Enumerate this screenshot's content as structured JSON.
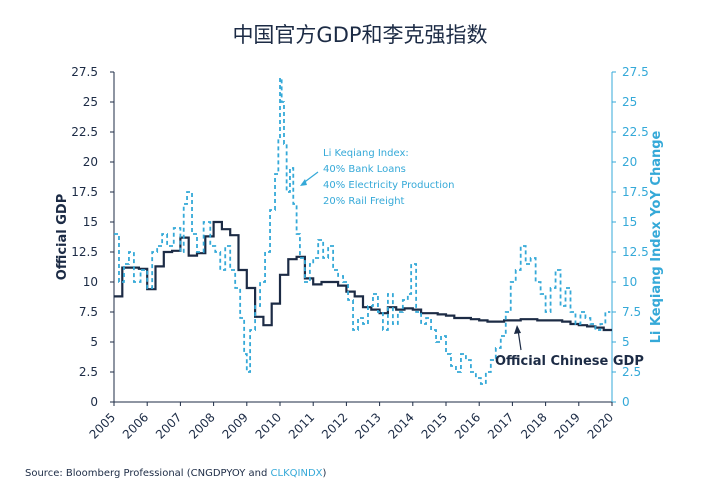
{
  "chart_data": {
    "type": "line",
    "title": "中国官方GDP和李克强指数",
    "ylabel_left": "Official GDP",
    "ylabel_right": "Li Keqiang Index YoY Change",
    "ylim_left": [
      0,
      27.5
    ],
    "ylim_right": [
      0,
      27.5
    ],
    "yticks": [
      0,
      2.5,
      5,
      7.5,
      10,
      12.5,
      15,
      17.5,
      20,
      22.5,
      25,
      27.5
    ],
    "ytick_labels": [
      "0",
      "2.5",
      "5",
      "7.5",
      "10",
      "12.5",
      "15",
      "17.5",
      "20",
      "22.5",
      "25",
      "27.5"
    ],
    "xlim": [
      2005,
      2020
    ],
    "xticks": [
      2005,
      2006,
      2007,
      2008,
      2009,
      2010,
      2011,
      2012,
      2013,
      2014,
      2015,
      2016,
      2017,
      2018,
      2019,
      2020
    ],
    "xtick_labels": [
      "2005",
      "2006",
      "2007",
      "2008",
      "2009",
      "2010",
      "2011",
      "2012",
      "2013",
      "2014",
      "2015",
      "2016",
      "2017",
      "2018",
      "2019",
      "2020"
    ],
    "colors": {
      "gdp": "#1c2b45",
      "lki": "#35a9d8"
    },
    "series": [
      {
        "name": "Official Chinese GDP",
        "axis": "left",
        "style": "step-solid",
        "x": [
          2005.0,
          2005.25,
          2005.75,
          2006.0,
          2006.25,
          2006.5,
          2006.75,
          2007.0,
          2007.25,
          2007.5,
          2007.75,
          2008.0,
          2008.25,
          2008.5,
          2008.75,
          2009.0,
          2009.25,
          2009.5,
          2009.75,
          2010.0,
          2010.25,
          2010.5,
          2010.75,
          2011.0,
          2011.25,
          2011.5,
          2011.75,
          2012.0,
          2012.25,
          2012.5,
          2012.75,
          2013.0,
          2013.25,
          2013.5,
          2013.75,
          2014.0,
          2014.25,
          2014.5,
          2014.75,
          2015.0,
          2015.25,
          2015.5,
          2015.75,
          2016.0,
          2016.25,
          2016.5,
          2016.75,
          2017.0,
          2017.25,
          2017.5,
          2017.75,
          2018.0,
          2018.25,
          2018.5,
          2018.75,
          2019.0,
          2019.25,
          2019.5,
          2019.75,
          2020.0
        ],
        "y": [
          8.8,
          11.2,
          11.1,
          9.4,
          11.3,
          12.5,
          12.6,
          13.7,
          12.2,
          12.4,
          13.8,
          15.0,
          14.4,
          13.9,
          11.0,
          9.5,
          7.1,
          6.4,
          8.2,
          10.6,
          11.9,
          12.1,
          10.3,
          9.8,
          10.0,
          10.0,
          9.7,
          9.2,
          8.8,
          7.9,
          7.7,
          7.4,
          7.9,
          7.7,
          7.8,
          7.7,
          7.4,
          7.4,
          7.3,
          7.2,
          7.0,
          7.0,
          6.9,
          6.8,
          6.7,
          6.7,
          6.8,
          6.8,
          6.9,
          6.9,
          6.8,
          6.8,
          6.8,
          6.7,
          6.5,
          6.4,
          6.3,
          6.2,
          6.0,
          6.0
        ]
      },
      {
        "name": "Li Keqiang Index",
        "axis": "right",
        "style": "dashed",
        "x": [
          2005.0,
          2005.15,
          2005.3,
          2005.45,
          2005.6,
          2005.8,
          2006.0,
          2006.15,
          2006.3,
          2006.45,
          2006.6,
          2006.8,
          2007.0,
          2007.1,
          2007.2,
          2007.35,
          2007.5,
          2007.7,
          2007.9,
          2008.05,
          2008.2,
          2008.35,
          2008.5,
          2008.65,
          2008.8,
          2008.92,
          2009.0,
          2009.1,
          2009.25,
          2009.4,
          2009.55,
          2009.7,
          2009.85,
          2009.95,
          2010.0,
          2010.05,
          2010.12,
          2010.2,
          2010.3,
          2010.4,
          2010.5,
          2010.6,
          2010.75,
          2010.9,
          2011.0,
          2011.15,
          2011.3,
          2011.45,
          2011.6,
          2011.75,
          2011.9,
          2012.05,
          2012.2,
          2012.35,
          2012.5,
          2012.65,
          2012.8,
          2012.95,
          2013.1,
          2013.25,
          2013.4,
          2013.55,
          2013.7,
          2013.85,
          2013.95,
          2014.1,
          2014.25,
          2014.4,
          2014.55,
          2014.7,
          2014.85,
          2015.0,
          2015.15,
          2015.3,
          2015.45,
          2015.6,
          2015.75,
          2015.9,
          2016.05,
          2016.2,
          2016.35,
          2016.5,
          2016.65,
          2016.8,
          2016.95,
          2017.1,
          2017.25,
          2017.4,
          2017.55,
          2017.7,
          2017.85,
          2018.0,
          2018.15,
          2018.3,
          2018.45,
          2018.6,
          2018.75,
          2018.9,
          2019.05,
          2019.2,
          2019.35,
          2019.5,
          2019.65,
          2019.8,
          2019.95
        ],
        "y": [
          14.0,
          10.0,
          11.5,
          12.5,
          10.0,
          11.0,
          9.5,
          12.5,
          13.0,
          14.0,
          13.0,
          14.5,
          12.5,
          16.5,
          17.5,
          14.0,
          12.5,
          15.0,
          13.0,
          12.5,
          11.0,
          13.0,
          11.0,
          9.5,
          7.0,
          4.0,
          2.5,
          6.0,
          8.0,
          10.0,
          12.5,
          16.0,
          19.0,
          22.0,
          27.0,
          25.0,
          21.5,
          17.5,
          19.5,
          16.5,
          14.0,
          12.0,
          10.0,
          11.5,
          12.0,
          13.5,
          12.0,
          13.0,
          11.0,
          10.5,
          10.0,
          8.5,
          6.0,
          7.0,
          6.5,
          8.0,
          9.0,
          7.5,
          6.0,
          9.0,
          6.5,
          7.5,
          8.5,
          9.0,
          11.5,
          7.5,
          6.5,
          7.0,
          6.0,
          5.0,
          5.5,
          4.0,
          3.0,
          2.5,
          4.0,
          3.5,
          2.5,
          2.0,
          1.5,
          2.5,
          3.5,
          4.5,
          5.5,
          7.5,
          10.0,
          11.0,
          13.0,
          11.5,
          12.0,
          10.0,
          9.0,
          7.5,
          9.5,
          11.0,
          8.0,
          9.5,
          7.5,
          6.5,
          7.5,
          7.0,
          6.5,
          6.0,
          6.5,
          7.5,
          7.5
        ]
      }
    ],
    "annotations": {
      "lki_note": [
        "Li Keqiang Index:",
        "40% Bank Loans",
        "40% Electricity Production",
        "20% Rail Freight"
      ],
      "gdp_label": "Official Chinese GDP"
    }
  },
  "source": {
    "prefix": "Source: Bloomberg Professional (CNGDPYOY and ",
    "highlight": "CLKQINDX",
    "suffix": ")"
  }
}
